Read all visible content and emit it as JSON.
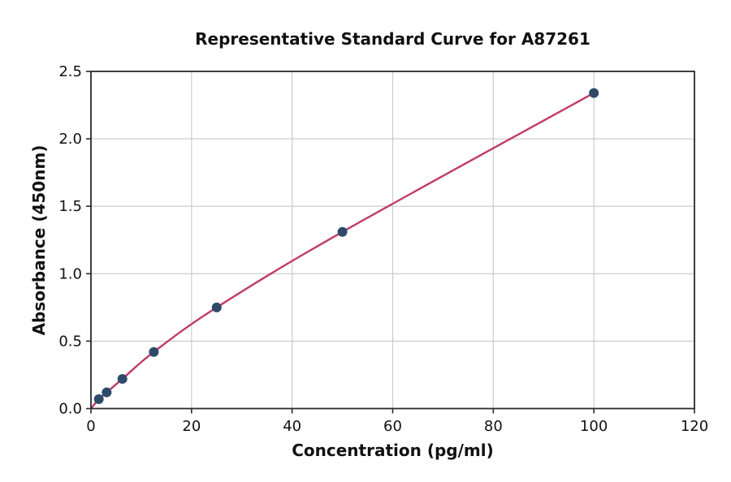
{
  "figure": {
    "background": "#ffffff"
  },
  "chart_data": {
    "type": "line",
    "title": "Representative Standard Curve for A87261",
    "xlabel": "Concentration (pg/ml)",
    "ylabel": "Absorbance (450nm)",
    "xlim": [
      0,
      120
    ],
    "ylim": [
      0,
      2.5
    ],
    "xticks": [
      "0",
      "20",
      "40",
      "60",
      "80",
      "100",
      "120"
    ],
    "yticks": [
      "0.0",
      "0.5",
      "1.0",
      "1.5",
      "2.0",
      "2.5"
    ],
    "grid": true,
    "legend": "none",
    "series": [
      {
        "name": "fitted-standard-curve",
        "type": "smooth-line",
        "color": "#c03b68",
        "line_width": 2.4,
        "points": [
          [
            0,
            0
          ],
          [
            1.5625,
            0.07
          ],
          [
            3.125,
            0.12
          ],
          [
            6.25,
            0.22
          ],
          [
            12.5,
            0.42
          ],
          [
            25,
            0.75
          ],
          [
            50,
            1.31
          ],
          [
            100,
            2.34
          ]
        ]
      },
      {
        "name": "standard-points",
        "type": "scatter",
        "color": "#2e4a6b",
        "marker_radius": 6,
        "points": [
          [
            1.5625,
            0.07
          ],
          [
            3.125,
            0.12
          ],
          [
            6.25,
            0.22
          ],
          [
            12.5,
            0.42
          ],
          [
            25,
            0.75
          ],
          [
            50,
            1.31
          ],
          [
            100,
            2.34
          ]
        ]
      }
    ],
    "colors": {
      "grid": "#c8c8c8",
      "spine": "#2a2a2a",
      "tick_label": "#111111"
    }
  }
}
